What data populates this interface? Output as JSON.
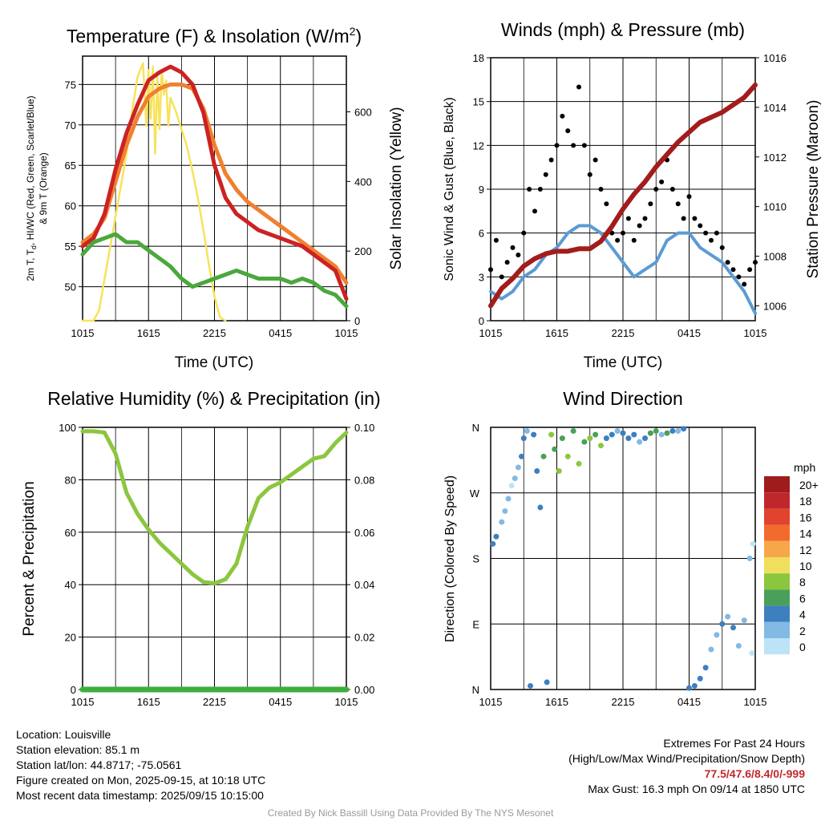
{
  "chart_data": [
    {
      "id": "temp",
      "type": "line",
      "title": "Temperature (F) & Insolation (W/m",
      "title_sup": "2",
      "title_end": ")",
      "xlabel": "Time (UTC)",
      "ylabel_left_lines": [
        "2m T, T",
        "d",
        ", HI/WC (Red, Green, Scarlet/Blue)",
        "& 9m T (Orange)"
      ],
      "ylabel_right": "Solar Insolation (Yellow)",
      "x_ticks": [
        "1015",
        "1615",
        "2215",
        "0415",
        "1015"
      ],
      "x_range": [
        0,
        24
      ],
      "ylim_left": [
        45.8,
        78.5
      ],
      "yticks_left": [
        50,
        55,
        60,
        65,
        70,
        75
      ],
      "ylim_right": [
        0,
        760
      ],
      "yticks_right": [
        0,
        200,
        400,
        600
      ],
      "series": [
        {
          "color": "#f7e35b",
          "axis": "right",
          "x": [
            0,
            1,
            1.5,
            2,
            3,
            4,
            4.5,
            5,
            5.5,
            5.8,
            6,
            6.2,
            6.4,
            6.6,
            6.8,
            7,
            7.2,
            7.4,
            7.6,
            7.8,
            8,
            8.5,
            9,
            9.5,
            10,
            10.5,
            11,
            11.5,
            12,
            12.5,
            13
          ],
          "y": [
            0,
            0,
            30,
            120,
            300,
            480,
            600,
            700,
            740,
            560,
            720,
            580,
            730,
            480,
            700,
            550,
            720,
            650,
            690,
            560,
            640,
            600,
            550,
            500,
            430,
            350,
            260,
            160,
            70,
            10,
            0
          ]
        },
        {
          "color": "#f08030",
          "axis": "left",
          "x": [
            0,
            1,
            2,
            3,
            4,
            5,
            6,
            7,
            8,
            9,
            10,
            11,
            12,
            13,
            14,
            15,
            16,
            17,
            18,
            19,
            20,
            21,
            22,
            23,
            24
          ],
          "y": [
            55.5,
            56.5,
            58.5,
            63,
            67.5,
            71,
            73.5,
            74.5,
            75,
            75,
            74.5,
            72,
            67.5,
            64,
            62,
            60.5,
            59.5,
            58.5,
            57.5,
            56.5,
            55.5,
            54.5,
            53.5,
            52.5,
            50.5
          ]
        },
        {
          "color": "#cc2222",
          "axis": "left",
          "x": [
            0,
            1,
            2,
            3,
            4,
            5,
            6,
            7,
            8,
            9,
            10,
            11,
            12,
            13,
            14,
            15,
            16,
            17,
            18,
            19,
            20,
            21,
            22,
            23,
            24
          ],
          "y": [
            55,
            56,
            59,
            64.5,
            69,
            72.5,
            75.5,
            76.5,
            77.2,
            76.5,
            75,
            71.5,
            65,
            61,
            59,
            58,
            57,
            56.5,
            56,
            55.5,
            55,
            54,
            53,
            52,
            48.5
          ]
        },
        {
          "color": "#4aa83c",
          "axis": "left",
          "x": [
            0,
            1,
            2,
            3,
            4,
            5,
            6,
            7,
            8,
            9,
            10,
            11,
            12,
            13,
            14,
            15,
            16,
            17,
            18,
            19,
            20,
            21,
            22,
            23,
            24
          ],
          "y": [
            54,
            55.5,
            56,
            56.5,
            55.5,
            55.5,
            54.5,
            53.5,
            52.5,
            51,
            50,
            50.5,
            51,
            51.5,
            52,
            51.5,
            51,
            51,
            51,
            50.5,
            51,
            50.5,
            49.5,
            49,
            47.6
          ]
        }
      ]
    },
    {
      "id": "wind",
      "type": "scatter",
      "title": "Winds (mph) & Pressure (mb)",
      "xlabel": "Time (UTC)",
      "ylabel_left": "Sonic Wind & Gust (Blue, Black)",
      "ylabel_right": "Station Pressure (Maroon)",
      "x_ticks": [
        "1015",
        "1615",
        "2215",
        "0415",
        "1015"
      ],
      "x_range": [
        0,
        24
      ],
      "ylim_left": [
        0,
        18
      ],
      "yticks_left": [
        0,
        3,
        6,
        9,
        12,
        15,
        18
      ],
      "ylim_right": [
        1005.4,
        1016
      ],
      "yticks_right": [
        1006,
        1008,
        1010,
        1012,
        1014,
        1016
      ],
      "series": [
        {
          "color": "#5b9bd5",
          "axis": "left",
          "kind": "line",
          "x": [
            0,
            1,
            2,
            3,
            4,
            5,
            6,
            7,
            8,
            9,
            10,
            11,
            12,
            13,
            14,
            15,
            16,
            17,
            18,
            19,
            20,
            21,
            22,
            23,
            24
          ],
          "y": [
            2,
            1.5,
            2,
            3,
            3.5,
            4.5,
            5,
            6,
            6.5,
            6.5,
            6,
            5,
            4,
            3,
            3.5,
            4,
            5.5,
            6,
            6,
            5,
            4.5,
            4,
            3,
            2,
            0.5
          ]
        },
        {
          "color": "#000000",
          "axis": "left",
          "kind": "points",
          "x": [
            0,
            0.5,
            1,
            1.5,
            2,
            2.5,
            3,
            3.5,
            4,
            4.5,
            5,
            5.5,
            6,
            6.5,
            7,
            7.5,
            8,
            8.5,
            9,
            9.5,
            10,
            10.5,
            11,
            11.5,
            12,
            12.5,
            13,
            13.5,
            14,
            14.5,
            15,
            15.5,
            16,
            16.5,
            17,
            17.5,
            18,
            18.5,
            19,
            19.5,
            20,
            20.5,
            21,
            21.5,
            22,
            22.5,
            23,
            23.5,
            24
          ],
          "y": [
            3.5,
            5.5,
            3,
            4,
            5,
            4.5,
            6,
            9,
            7.5,
            9,
            10,
            11,
            12,
            14,
            13,
            12,
            16,
            12,
            10,
            11,
            9,
            8,
            6,
            5.5,
            6,
            7,
            5.5,
            6.5,
            7,
            8,
            9,
            9.5,
            11,
            9,
            8,
            7,
            8.5,
            7,
            6.5,
            6,
            5.5,
            6,
            5,
            4,
            3.5,
            3,
            2.5,
            3.5,
            4
          ]
        },
        {
          "color": "#a31c1c",
          "axis": "right",
          "kind": "line",
          "x": [
            0,
            1,
            2,
            3,
            4,
            5,
            6,
            7,
            8,
            9,
            10,
            11,
            12,
            13,
            14,
            15,
            16,
            17,
            18,
            19,
            20,
            21,
            22,
            23,
            24
          ],
          "y": [
            1006,
            1006.7,
            1007.1,
            1007.6,
            1007.9,
            1008.1,
            1008.2,
            1008.2,
            1008.3,
            1008.3,
            1008.6,
            1009.2,
            1009.9,
            1010.5,
            1011.0,
            1011.6,
            1012.1,
            1012.6,
            1013.0,
            1013.4,
            1013.6,
            1013.8,
            1014.1,
            1014.4,
            1014.9
          ]
        }
      ]
    },
    {
      "id": "rh",
      "type": "line",
      "title": "Relative Humidity (%) & Precipitation (in)",
      "xlabel": "",
      "ylabel_left": "Percent & Precipitation",
      "x_ticks": [
        "1015",
        "1615",
        "2215",
        "0415",
        "1015"
      ],
      "x_range": [
        0,
        24
      ],
      "ylim_left": [
        0,
        100
      ],
      "yticks_left": [
        0,
        20,
        40,
        60,
        80,
        100
      ],
      "ylim_right": [
        0,
        0.1
      ],
      "yticks_right": [
        "0.00",
        "0.02",
        "0.04",
        "0.06",
        "0.08",
        "0.10"
      ],
      "series": [
        {
          "color": "#8cc63f",
          "axis": "left",
          "x": [
            0,
            1,
            2,
            3,
            4,
            5,
            6,
            7,
            8,
            9,
            10,
            11,
            12,
            13,
            14,
            15,
            16,
            17,
            18,
            19,
            20,
            21,
            22,
            23,
            24
          ],
          "y": [
            98.5,
            98.5,
            98,
            90,
            75,
            67,
            61,
            56,
            52,
            48,
            44,
            41,
            40.5,
            42,
            48,
            62,
            73,
            77,
            79,
            82,
            85,
            88,
            89,
            94,
            98
          ]
        },
        {
          "color": "#3cae3c",
          "axis": "right",
          "x": [
            0,
            24
          ],
          "y": [
            0,
            0
          ]
        }
      ]
    },
    {
      "id": "dir",
      "type": "scatter",
      "title": "Wind Direction",
      "xlabel": "",
      "ylabel_left": "Direction (Colored By Speed)",
      "x_ticks": [
        "1015",
        "1615",
        "2215",
        "0415",
        "1015"
      ],
      "x_range": [
        0,
        24
      ],
      "y_ticks": [
        "N",
        "E",
        "S",
        "W",
        "N"
      ],
      "ylim": [
        0,
        360
      ],
      "legend_title": "mph",
      "legend_labels": [
        "20+",
        "18",
        "16",
        "14",
        "12",
        "10",
        "8",
        "6",
        "4",
        "2",
        "0"
      ],
      "legend_colors": [
        "#9e1c1c",
        "#c0272d",
        "#e0432e",
        "#f26b2d",
        "#f7a64a",
        "#f0de5d",
        "#8cc63f",
        "#4aa05a",
        "#3d7fbf",
        "#82b9e5",
        "#bde3f7"
      ],
      "points": [
        {
          "x": 0.2,
          "y": 200,
          "c": "#3d7fbf"
        },
        {
          "x": 0.5,
          "y": 210,
          "c": "#3d7fbf"
        },
        {
          "x": 1.0,
          "y": 230,
          "c": "#82b9e5"
        },
        {
          "x": 1.3,
          "y": 245,
          "c": "#82b9e5"
        },
        {
          "x": 1.6,
          "y": 262,
          "c": "#82b9e5"
        },
        {
          "x": 1.9,
          "y": 280,
          "c": "#bde3f7"
        },
        {
          "x": 2.2,
          "y": 290,
          "c": "#82b9e5"
        },
        {
          "x": 2.5,
          "y": 305,
          "c": "#82b9e5"
        },
        {
          "x": 2.8,
          "y": 320,
          "c": "#3d7fbf"
        },
        {
          "x": 3.0,
          "y": 345,
          "c": "#3d7fbf"
        },
        {
          "x": 3.3,
          "y": 355,
          "c": "#82b9e5"
        },
        {
          "x": 3.6,
          "y": 5,
          "c": "#3d7fbf"
        },
        {
          "x": 3.9,
          "y": 350,
          "c": "#3d7fbf"
        },
        {
          "x": 4.2,
          "y": 300,
          "c": "#3d7fbf"
        },
        {
          "x": 4.5,
          "y": 250,
          "c": "#3d7fbf"
        },
        {
          "x": 4.8,
          "y": 320,
          "c": "#4aa05a"
        },
        {
          "x": 5.1,
          "y": 10,
          "c": "#3d7fbf"
        },
        {
          "x": 5.5,
          "y": 350,
          "c": "#8cc63f"
        },
        {
          "x": 5.8,
          "y": 330,
          "c": "#4aa05a"
        },
        {
          "x": 6.2,
          "y": 300,
          "c": "#8cc63f"
        },
        {
          "x": 6.5,
          "y": 345,
          "c": "#4aa05a"
        },
        {
          "x": 7.0,
          "y": 320,
          "c": "#8cc63f"
        },
        {
          "x": 7.5,
          "y": 355,
          "c": "#4aa05a"
        },
        {
          "x": 8.0,
          "y": 310,
          "c": "#8cc63f"
        },
        {
          "x": 8.5,
          "y": 340,
          "c": "#4aa05a"
        },
        {
          "x": 9.0,
          "y": 345,
          "c": "#8cc63f"
        },
        {
          "x": 9.5,
          "y": 350,
          "c": "#4aa05a"
        },
        {
          "x": 10.0,
          "y": 335,
          "c": "#8cc63f"
        },
        {
          "x": 10.5,
          "y": 345,
          "c": "#3d7fbf"
        },
        {
          "x": 11.0,
          "y": 350,
          "c": "#3d7fbf"
        },
        {
          "x": 11.5,
          "y": 355,
          "c": "#82b9e5"
        },
        {
          "x": 12.0,
          "y": 352,
          "c": "#3d7fbf"
        },
        {
          "x": 12.5,
          "y": 345,
          "c": "#3d7fbf"
        },
        {
          "x": 13.0,
          "y": 350,
          "c": "#3d7fbf"
        },
        {
          "x": 13.5,
          "y": 340,
          "c": "#82b9e5"
        },
        {
          "x": 14.0,
          "y": 345,
          "c": "#3d7fbf"
        },
        {
          "x": 14.5,
          "y": 352,
          "c": "#4aa05a"
        },
        {
          "x": 15.0,
          "y": 355,
          "c": "#4aa05a"
        },
        {
          "x": 15.5,
          "y": 350,
          "c": "#82b9e5"
        },
        {
          "x": 16.0,
          "y": 352,
          "c": "#4aa05a"
        },
        {
          "x": 16.5,
          "y": 355,
          "c": "#3d7fbf"
        },
        {
          "x": 17.0,
          "y": 355,
          "c": "#82b9e5"
        },
        {
          "x": 17.5,
          "y": 358,
          "c": "#3d7fbf"
        },
        {
          "x": 18.0,
          "y": 2,
          "c": "#3d7fbf"
        },
        {
          "x": 18.5,
          "y": 5,
          "c": "#3d7fbf"
        },
        {
          "x": 19.0,
          "y": 15,
          "c": "#3d7fbf"
        },
        {
          "x": 19.5,
          "y": 30,
          "c": "#3d7fbf"
        },
        {
          "x": 20.0,
          "y": 55,
          "c": "#82b9e5"
        },
        {
          "x": 20.5,
          "y": 75,
          "c": "#82b9e5"
        },
        {
          "x": 21.0,
          "y": 90,
          "c": "#3d7fbf"
        },
        {
          "x": 21.5,
          "y": 100,
          "c": "#82b9e5"
        },
        {
          "x": 22.0,
          "y": 85,
          "c": "#3d7fbf"
        },
        {
          "x": 22.5,
          "y": 60,
          "c": "#82b9e5"
        },
        {
          "x": 23.0,
          "y": 95,
          "c": "#82b9e5"
        },
        {
          "x": 23.5,
          "y": 180,
          "c": "#82b9e5"
        },
        {
          "x": 23.7,
          "y": 50,
          "c": "#bde3f7"
        },
        {
          "x": 23.8,
          "y": 200,
          "c": "#bde3f7"
        }
      ]
    }
  ],
  "info": {
    "location": "Location: Louisville",
    "elevation": "Station elevation: 85.1 m",
    "latlon": "Station lat/lon: 44.8717; -75.0561",
    "created": "Figure created on Mon, 2025-09-15, at 10:18 UTC",
    "recent": "Most recent data timestamp: 2025/09/15 10:15:00"
  },
  "extremes": {
    "title": "Extremes For Past 24 Hours",
    "subtitle": "(High/Low/Max Wind/Precipitation/Snow Depth)",
    "values": "77.5/47.6/8.4/0/-999",
    "gust": "Max Gust: 16.3 mph On 09/14 at 1850 UTC"
  },
  "credit": "Created By Nick Bassill Using Data Provided By The NYS Mesonet"
}
